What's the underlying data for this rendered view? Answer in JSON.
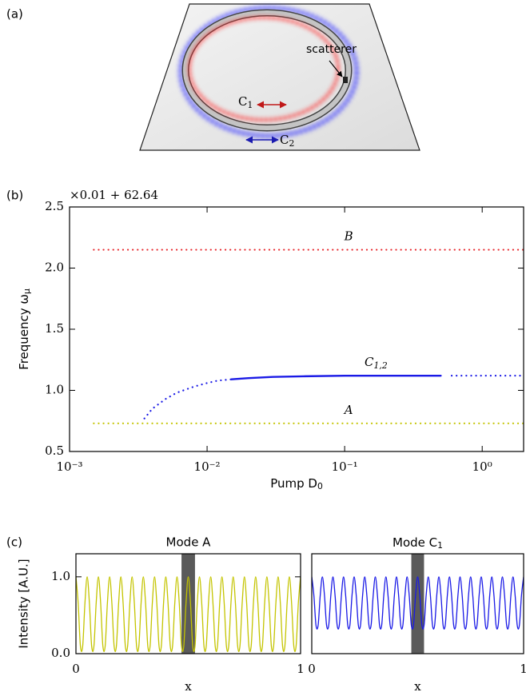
{
  "diagram": {
    "label": "(a)",
    "scatterer": "scatterer",
    "c1": {
      "base": "C",
      "sub": "1"
    },
    "c2": {
      "base": "C",
      "sub": "2"
    }
  },
  "chart_data": [
    {
      "type": "line",
      "panel": "(b)",
      "offset_text": "×0.01 + 62.64",
      "xlabel": {
        "base": "Pump D",
        "sub": "0"
      },
      "ylabel": {
        "base": "Frequency ω",
        "sub": "μ"
      },
      "xscale": "log",
      "xlim": [
        0.001,
        2
      ],
      "xticks": [
        {
          "value": 0.001,
          "label": "10⁻³"
        },
        {
          "value": 0.01,
          "label": "10⁻²"
        },
        {
          "value": 0.1,
          "label": "10⁻¹"
        },
        {
          "value": 1,
          "label": "10⁰"
        }
      ],
      "ylim": [
        0.5,
        2.5
      ],
      "yticks": [
        0.5,
        {
          "value": 1,
          "label": "1.0"
        },
        1.5,
        {
          "value": 2,
          "label": "2.0"
        },
        2.5
      ],
      "series": [
        {
          "label": "B",
          "color": "#e8262b",
          "style": "dotted",
          "x": [
            0.0015,
            2
          ],
          "values": [
            2.15,
            2.15
          ]
        },
        {
          "label": "A",
          "color": "#c4c400",
          "style": "dotted",
          "x": [
            0.0015,
            2
          ],
          "values": [
            0.73,
            0.73
          ]
        },
        {
          "color": "#1a1ae6",
          "style": "dotted",
          "x": [
            0.0035,
            0.004,
            0.005,
            0.006,
            0.008,
            0.01,
            0.012,
            0.015
          ],
          "values": [
            0.77,
            0.85,
            0.93,
            0.98,
            1.03,
            1.06,
            1.08,
            1.09
          ]
        },
        {
          "label": {
            "base": "C",
            "sub": "1,2"
          },
          "color": "#1a1ae6",
          "style": "solid",
          "x": [
            0.015,
            0.02,
            0.03,
            0.05,
            0.1,
            0.2,
            0.5
          ],
          "values": [
            1.09,
            1.1,
            1.11,
            1.115,
            1.12,
            1.12,
            1.12
          ]
        },
        {
          "color": "#1a1ae6",
          "style": "dotted",
          "x": [
            0.6,
            2
          ],
          "values": [
            1.12,
            1.12
          ]
        }
      ]
    },
    {
      "type": "wave",
      "panel": "(c)",
      "title": "Mode A",
      "xlabel": "x",
      "ylabel": "Intensity [A.U.]",
      "xlim": [
        0,
        1
      ],
      "xticks": [
        0,
        1
      ],
      "ylim": [
        0,
        1.3
      ],
      "yticks": [
        {
          "value": 0,
          "label": "0.0"
        },
        {
          "value": 1,
          "label": "1.0"
        }
      ],
      "shade": [
        0.47,
        0.53
      ],
      "shade_color": "#5a5a5a",
      "color": "#c4c400",
      "x": [
        0,
        0.01,
        0.02,
        0.03,
        0.04,
        0.05,
        0.06,
        0.07,
        0.08,
        0.09,
        0.1,
        0.11,
        0.12,
        0.13,
        0.14,
        0.15,
        0.16,
        0.17,
        0.18,
        0.19,
        0.2,
        0.21,
        0.22,
        0.23,
        0.24,
        0.25,
        0.26,
        0.27,
        0.28,
        0.29,
        0.3,
        0.31,
        0.32,
        0.33,
        0.34,
        0.35,
        0.36,
        0.37,
        0.38,
        0.39,
        0.4,
        0.41,
        0.42,
        0.43,
        0.44,
        0.45,
        0.46,
        0.47,
        0.48,
        0.49,
        0.5,
        0.51,
        0.52,
        0.53,
        0.54,
        0.55,
        0.56,
        0.57,
        0.58,
        0.59,
        0.6,
        0.61,
        0.62,
        0.63,
        0.64,
        0.65,
        0.66,
        0.67,
        0.68,
        0.69,
        0.7,
        0.71,
        0.72,
        0.73,
        0.74,
        0.75,
        0.76,
        0.77,
        0.78,
        0.79,
        0.8,
        0.81,
        0.82,
        0.83,
        0.84,
        0.85,
        0.86,
        0.87,
        0.88,
        0.89,
        0.9,
        0.91,
        0.92,
        0.93,
        0.94,
        0.95,
        0.96,
        0.97,
        0.98,
        0.99,
        1
      ],
      "values": [
        1,
        0.655,
        0.095,
        0.095,
        0.655,
        1,
        0.655,
        0.095,
        0.095,
        0.655,
        1,
        0.655,
        0.095,
        0.095,
        0.655,
        1,
        0.655,
        0.095,
        0.095,
        0.655,
        1,
        0.655,
        0.095,
        0.095,
        0.655,
        1,
        0.655,
        0.095,
        0.095,
        0.655,
        1,
        0.655,
        0.095,
        0.095,
        0.655,
        1,
        0.655,
        0.095,
        0.095,
        0.655,
        1,
        0.655,
        0.095,
        0.095,
        0.655,
        1,
        0.655,
        0.095,
        0.095,
        0.655,
        1,
        0.655,
        0.095,
        0.095,
        0.655,
        1,
        0.655,
        0.095,
        0.095,
        0.655,
        1,
        0.655,
        0.095,
        0.095,
        0.655,
        1,
        0.655,
        0.095,
        0.095,
        0.655,
        1,
        0.655,
        0.095,
        0.095,
        0.655,
        1,
        0.655,
        0.095,
        0.095,
        0.655,
        1,
        0.655,
        0.095,
        0.095,
        0.655,
        1,
        0.655,
        0.095,
        0.095,
        0.655,
        1,
        0.655,
        0.095,
        0.095,
        0.655,
        1,
        0.655,
        0.095,
        0.095,
        0.655,
        1
      ]
    },
    {
      "type": "wave",
      "title": {
        "base": "Mode C",
        "sub": "1"
      },
      "xlabel": "x",
      "xlim": [
        0,
        1
      ],
      "xticks": [
        0,
        1
      ],
      "ylim": [
        0,
        1.3
      ],
      "shade": [
        0.47,
        0.53
      ],
      "shade_color": "#5a5a5a",
      "color": "#1a1ae6",
      "x": [
        0,
        0.01,
        0.02,
        0.03,
        0.04,
        0.05,
        0.06,
        0.07,
        0.08,
        0.09,
        0.1,
        0.11,
        0.12,
        0.13,
        0.14,
        0.15,
        0.16,
        0.17,
        0.18,
        0.19,
        0.2,
        0.21,
        0.22,
        0.23,
        0.24,
        0.25,
        0.26,
        0.27,
        0.28,
        0.29,
        0.3,
        0.31,
        0.32,
        0.33,
        0.34,
        0.35,
        0.36,
        0.37,
        0.38,
        0.39,
        0.4,
        0.41,
        0.42,
        0.43,
        0.44,
        0.45,
        0.46,
        0.47,
        0.48,
        0.49,
        0.5,
        0.51,
        0.52,
        0.53,
        0.54,
        0.55,
        0.56,
        0.57,
        0.58,
        0.59,
        0.6,
        0.61,
        0.62,
        0.63,
        0.64,
        0.65,
        0.66,
        0.67,
        0.68,
        0.69,
        0.7,
        0.71,
        0.72,
        0.73,
        0.74,
        0.75,
        0.76,
        0.77,
        0.78,
        0.79,
        0.8,
        0.81,
        0.82,
        0.83,
        0.84,
        0.85,
        0.86,
        0.87,
        0.88,
        0.89,
        0.9,
        0.91,
        0.92,
        0.93,
        0.94,
        0.95,
        0.96,
        0.97,
        0.98,
        0.99,
        1
      ],
      "values": [
        1,
        0.758,
        0.367,
        0.367,
        0.758,
        1,
        0.758,
        0.367,
        0.367,
        0.758,
        1,
        0.758,
        0.367,
        0.367,
        0.758,
        1,
        0.758,
        0.367,
        0.367,
        0.758,
        1,
        0.758,
        0.367,
        0.367,
        0.758,
        1,
        0.758,
        0.367,
        0.367,
        0.758,
        1,
        0.758,
        0.367,
        0.367,
        0.758,
        1,
        0.758,
        0.367,
        0.367,
        0.758,
        1,
        0.758,
        0.367,
        0.367,
        0.758,
        1,
        0.758,
        0.367,
        0.367,
        0.758,
        1,
        0.758,
        0.367,
        0.367,
        0.758,
        1,
        0.758,
        0.367,
        0.367,
        0.758,
        1,
        0.758,
        0.367,
        0.367,
        0.758,
        1,
        0.758,
        0.367,
        0.367,
        0.758,
        1,
        0.758,
        0.367,
        0.367,
        0.758,
        1,
        0.758,
        0.367,
        0.367,
        0.758,
        1,
        0.758,
        0.367,
        0.367,
        0.758,
        1,
        0.758,
        0.367,
        0.367,
        0.758,
        1,
        0.758,
        0.367,
        0.367,
        0.758,
        1,
        0.758,
        0.367,
        0.367,
        0.758,
        1
      ]
    }
  ]
}
